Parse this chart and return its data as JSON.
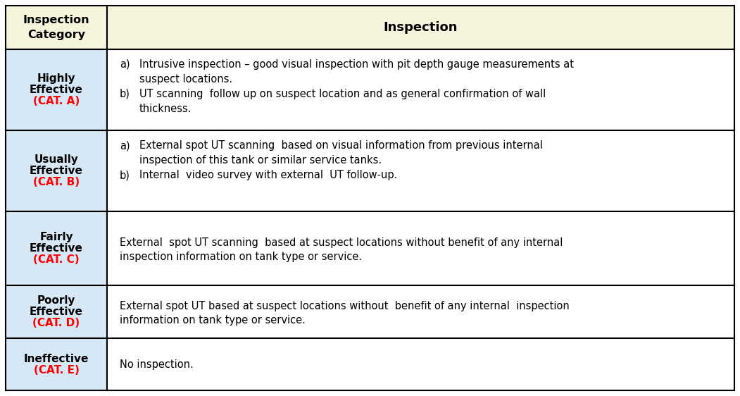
{
  "header_col1": "Inspection\nCategory",
  "header_col2": "Inspection",
  "header_bg": "#F5F5DC",
  "row_bg_blue": "#D6E8F5",
  "row_bg_white": "#FFFFFF",
  "border_color": "#000000",
  "black": "#000000",
  "red": "#FF0000",
  "rows": [
    {
      "category_line1": "Highly",
      "category_line2": "Effective",
      "category_cat": "(CAT. A)",
      "bg": "#D6E8F5",
      "inspect_a": "Intrusive inspection – good visual inspection with pit depth gauge measurements at\nsuspect locations.",
      "inspect_b": "UT scanning  follow up on suspect location and as general confirmation of wall\nthickness."
    },
    {
      "category_line1": "Usually",
      "category_line2": "Effective",
      "category_cat": "(CAT. B)",
      "bg": "#D6E8F5",
      "inspect_a": "External spot UT scanning  based on visual information from previous internal\ninspection of this tank or similar service tanks.",
      "inspect_b": "Internal  video survey with external  UT follow-up."
    },
    {
      "category_line1": "Fairly",
      "category_line2": "Effective",
      "category_cat": "(CAT. C)",
      "bg": "#D6E8F5",
      "inspect_single": "External  spot UT scanning  based at suspect locations without benefit of any internal\ninspection information on tank type or service."
    },
    {
      "category_line1": "Poorly",
      "category_line2": "Effective",
      "category_cat": "(CAT. D)",
      "bg": "#D6E8F5",
      "inspect_single": "External spot UT based at suspect locations without  benefit of any internal  inspection\ninformation on tank type or service."
    },
    {
      "category_line1": "Ineffective",
      "category_line2": "",
      "category_cat": "(CAT. E)",
      "bg": "#D6E8F5",
      "inspect_single": "No inspection."
    }
  ],
  "figsize": [
    10.51,
    5.62
  ],
  "dpi": 100
}
